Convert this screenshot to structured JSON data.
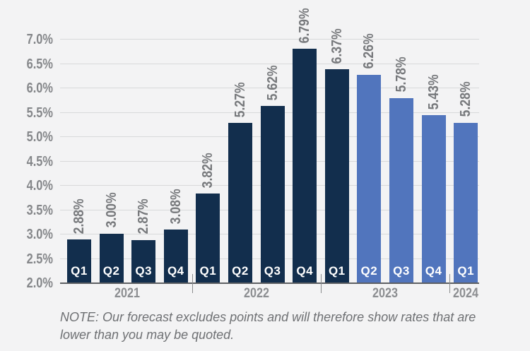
{
  "note": {
    "text": "NOTE: Our forecast excludes points and will therefore show rates that are lower than you may be quoted."
  },
  "chart_data": {
    "type": "bar",
    "title": "",
    "xlabel": "",
    "ylabel": "",
    "unit": "%",
    "ylim": [
      2.0,
      7.0
    ],
    "ytick_step": 0.5,
    "ytick_labels": [
      "2.0%",
      "2.5%",
      "3.0%",
      "3.5%",
      "4.0%",
      "4.5%",
      "5.0%",
      "5.5%",
      "6.0%",
      "6.5%",
      "7.0%"
    ],
    "grid": true,
    "legend_position": "none",
    "bars": [
      {
        "quarter": "Q1",
        "year": "2021",
        "value": 2.88,
        "label": "2.88%",
        "series": "actual"
      },
      {
        "quarter": "Q2",
        "year": "2021",
        "value": 3.0,
        "label": "3.00%",
        "series": "actual"
      },
      {
        "quarter": "Q3",
        "year": "2021",
        "value": 2.87,
        "label": "2.87%",
        "series": "actual"
      },
      {
        "quarter": "Q4",
        "year": "2021",
        "value": 3.08,
        "label": "3.08%",
        "series": "actual"
      },
      {
        "quarter": "Q1",
        "year": "2022",
        "value": 3.82,
        "label": "3.82%",
        "series": "actual"
      },
      {
        "quarter": "Q2",
        "year": "2022",
        "value": 5.27,
        "label": "5.27%",
        "series": "actual"
      },
      {
        "quarter": "Q3",
        "year": "2022",
        "value": 5.62,
        "label": "5.62%",
        "series": "actual"
      },
      {
        "quarter": "Q4",
        "year": "2022",
        "value": 6.79,
        "label": "6.79%",
        "series": "actual"
      },
      {
        "quarter": "Q1",
        "year": "2023",
        "value": 6.37,
        "label": "6.37%",
        "series": "actual"
      },
      {
        "quarter": "Q2",
        "year": "2023",
        "value": 6.26,
        "label": "6.26%",
        "series": "forecast"
      },
      {
        "quarter": "Q3",
        "year": "2023",
        "value": 5.78,
        "label": "5.78%",
        "series": "forecast"
      },
      {
        "quarter": "Q4",
        "year": "2023",
        "value": 5.43,
        "label": "5.43%",
        "series": "forecast"
      },
      {
        "quarter": "Q1",
        "year": "2024",
        "value": 5.28,
        "label": "5.28%",
        "series": "forecast"
      }
    ],
    "year_groups": [
      {
        "year": "2021",
        "count": 4
      },
      {
        "year": "2022",
        "count": 4
      },
      {
        "year": "2023",
        "count": 4
      },
      {
        "year": "2024",
        "count": 1
      }
    ]
  },
  "colors": {
    "background": "#f3f3f4",
    "gridline": "#d8d9da",
    "axis_line": "#5e6063",
    "tick_text": "#85878a",
    "value_text": "#77797c",
    "year_text": "#8c8e91",
    "quarter_text": "#ffffff",
    "note_text": "#6e7073",
    "year_separator": "#8a8c8e",
    "bar_actual": "#122e4d",
    "bar_forecast": "#5175bd"
  }
}
